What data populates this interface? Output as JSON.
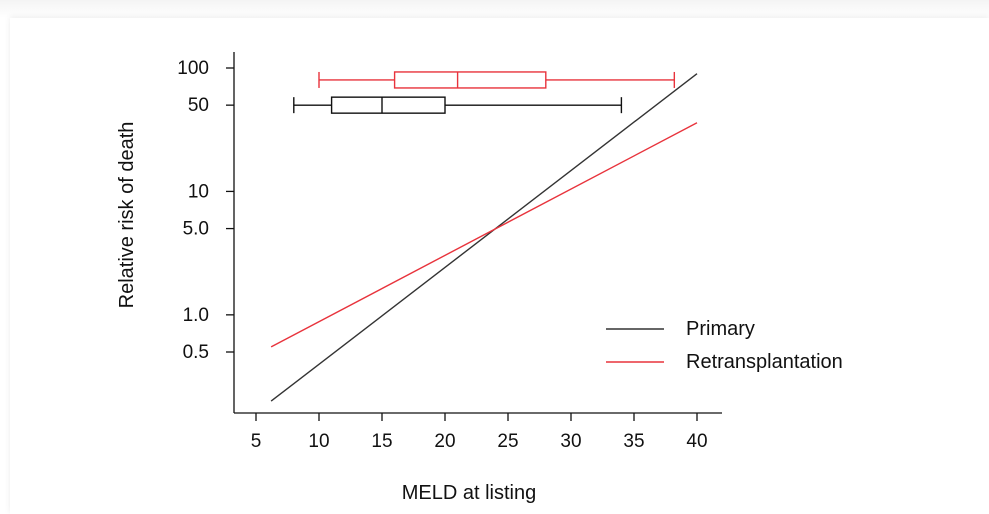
{
  "chart_data": {
    "type": "line",
    "xlabel": "MELD at listing",
    "ylabel": "Relative risk of death",
    "x_scale": "linear",
    "y_scale": "log",
    "xlim": [
      4,
      42
    ],
    "ylim": [
      0.15,
      150
    ],
    "x_ticks": [
      5,
      10,
      15,
      20,
      25,
      30,
      35,
      40
    ],
    "x_tick_labels": [
      "5",
      "10",
      "15",
      "20",
      "25",
      "30",
      "35",
      "40"
    ],
    "y_ticks": [
      0.5,
      1.0,
      5.0,
      10,
      50,
      100
    ],
    "y_tick_labels": [
      "0.5",
      "1.0",
      "5.0",
      "10",
      "50",
      "100"
    ],
    "grid": false,
    "legend_position": "bottom-right",
    "series": [
      {
        "name": "Primary",
        "color": "#333333",
        "x": [
          6.2,
          40
        ],
        "y": [
          0.2,
          90
        ]
      },
      {
        "name": "Retransplantation",
        "color": "#e8333c",
        "x": [
          6.2,
          40
        ],
        "y": [
          0.55,
          36
        ]
      }
    ],
    "boxplots": [
      {
        "series": "Primary",
        "color": "#111111",
        "y_level": 50,
        "whisker_low": 8,
        "q1": 11,
        "median": 15,
        "q3": 20,
        "whisker_high": 34
      },
      {
        "series": "Retransplantation",
        "color": "#e8333c",
        "y_level": 80,
        "whisker_low": 10,
        "q1": 16,
        "median": 21,
        "q3": 28,
        "whisker_high": 38.2
      }
    ]
  }
}
